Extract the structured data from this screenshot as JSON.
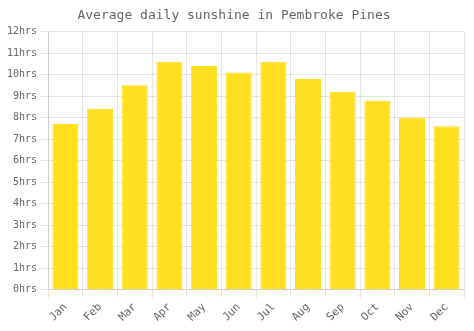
{
  "chart_data": {
    "type": "bar",
    "title": "Average daily sunshine in Pembroke Pines",
    "categories": [
      "Jan",
      "Feb",
      "Mar",
      "Apr",
      "May",
      "Jun",
      "Jul",
      "Aug",
      "Sep",
      "Oct",
      "Nov",
      "Dec"
    ],
    "values": [
      7.7,
      8.4,
      9.5,
      10.6,
      10.4,
      10.1,
      10.6,
      9.8,
      9.2,
      8.8,
      8.0,
      7.6
    ],
    "color": "#FFE020",
    "ylim": [
      0,
      12
    ],
    "yticks": [
      {
        "value": 0,
        "label": "0hrs"
      },
      {
        "value": 1,
        "label": "1hrs"
      },
      {
        "value": 2,
        "label": "2hrs"
      },
      {
        "value": 3,
        "label": "3hrs"
      },
      {
        "value": 4,
        "label": "4hrs"
      },
      {
        "value": 5,
        "label": "5hrs"
      },
      {
        "value": 6,
        "label": "6hrs"
      },
      {
        "value": 7,
        "label": "7hrs"
      },
      {
        "value": 8,
        "label": "8hrs"
      },
      {
        "value": 9,
        "label": "9hrs"
      },
      {
        "value": 10,
        "label": "10hrs"
      },
      {
        "value": 11,
        "label": "11hrs"
      },
      {
        "value": 12,
        "label": "12hrs"
      }
    ],
    "grid": true
  }
}
